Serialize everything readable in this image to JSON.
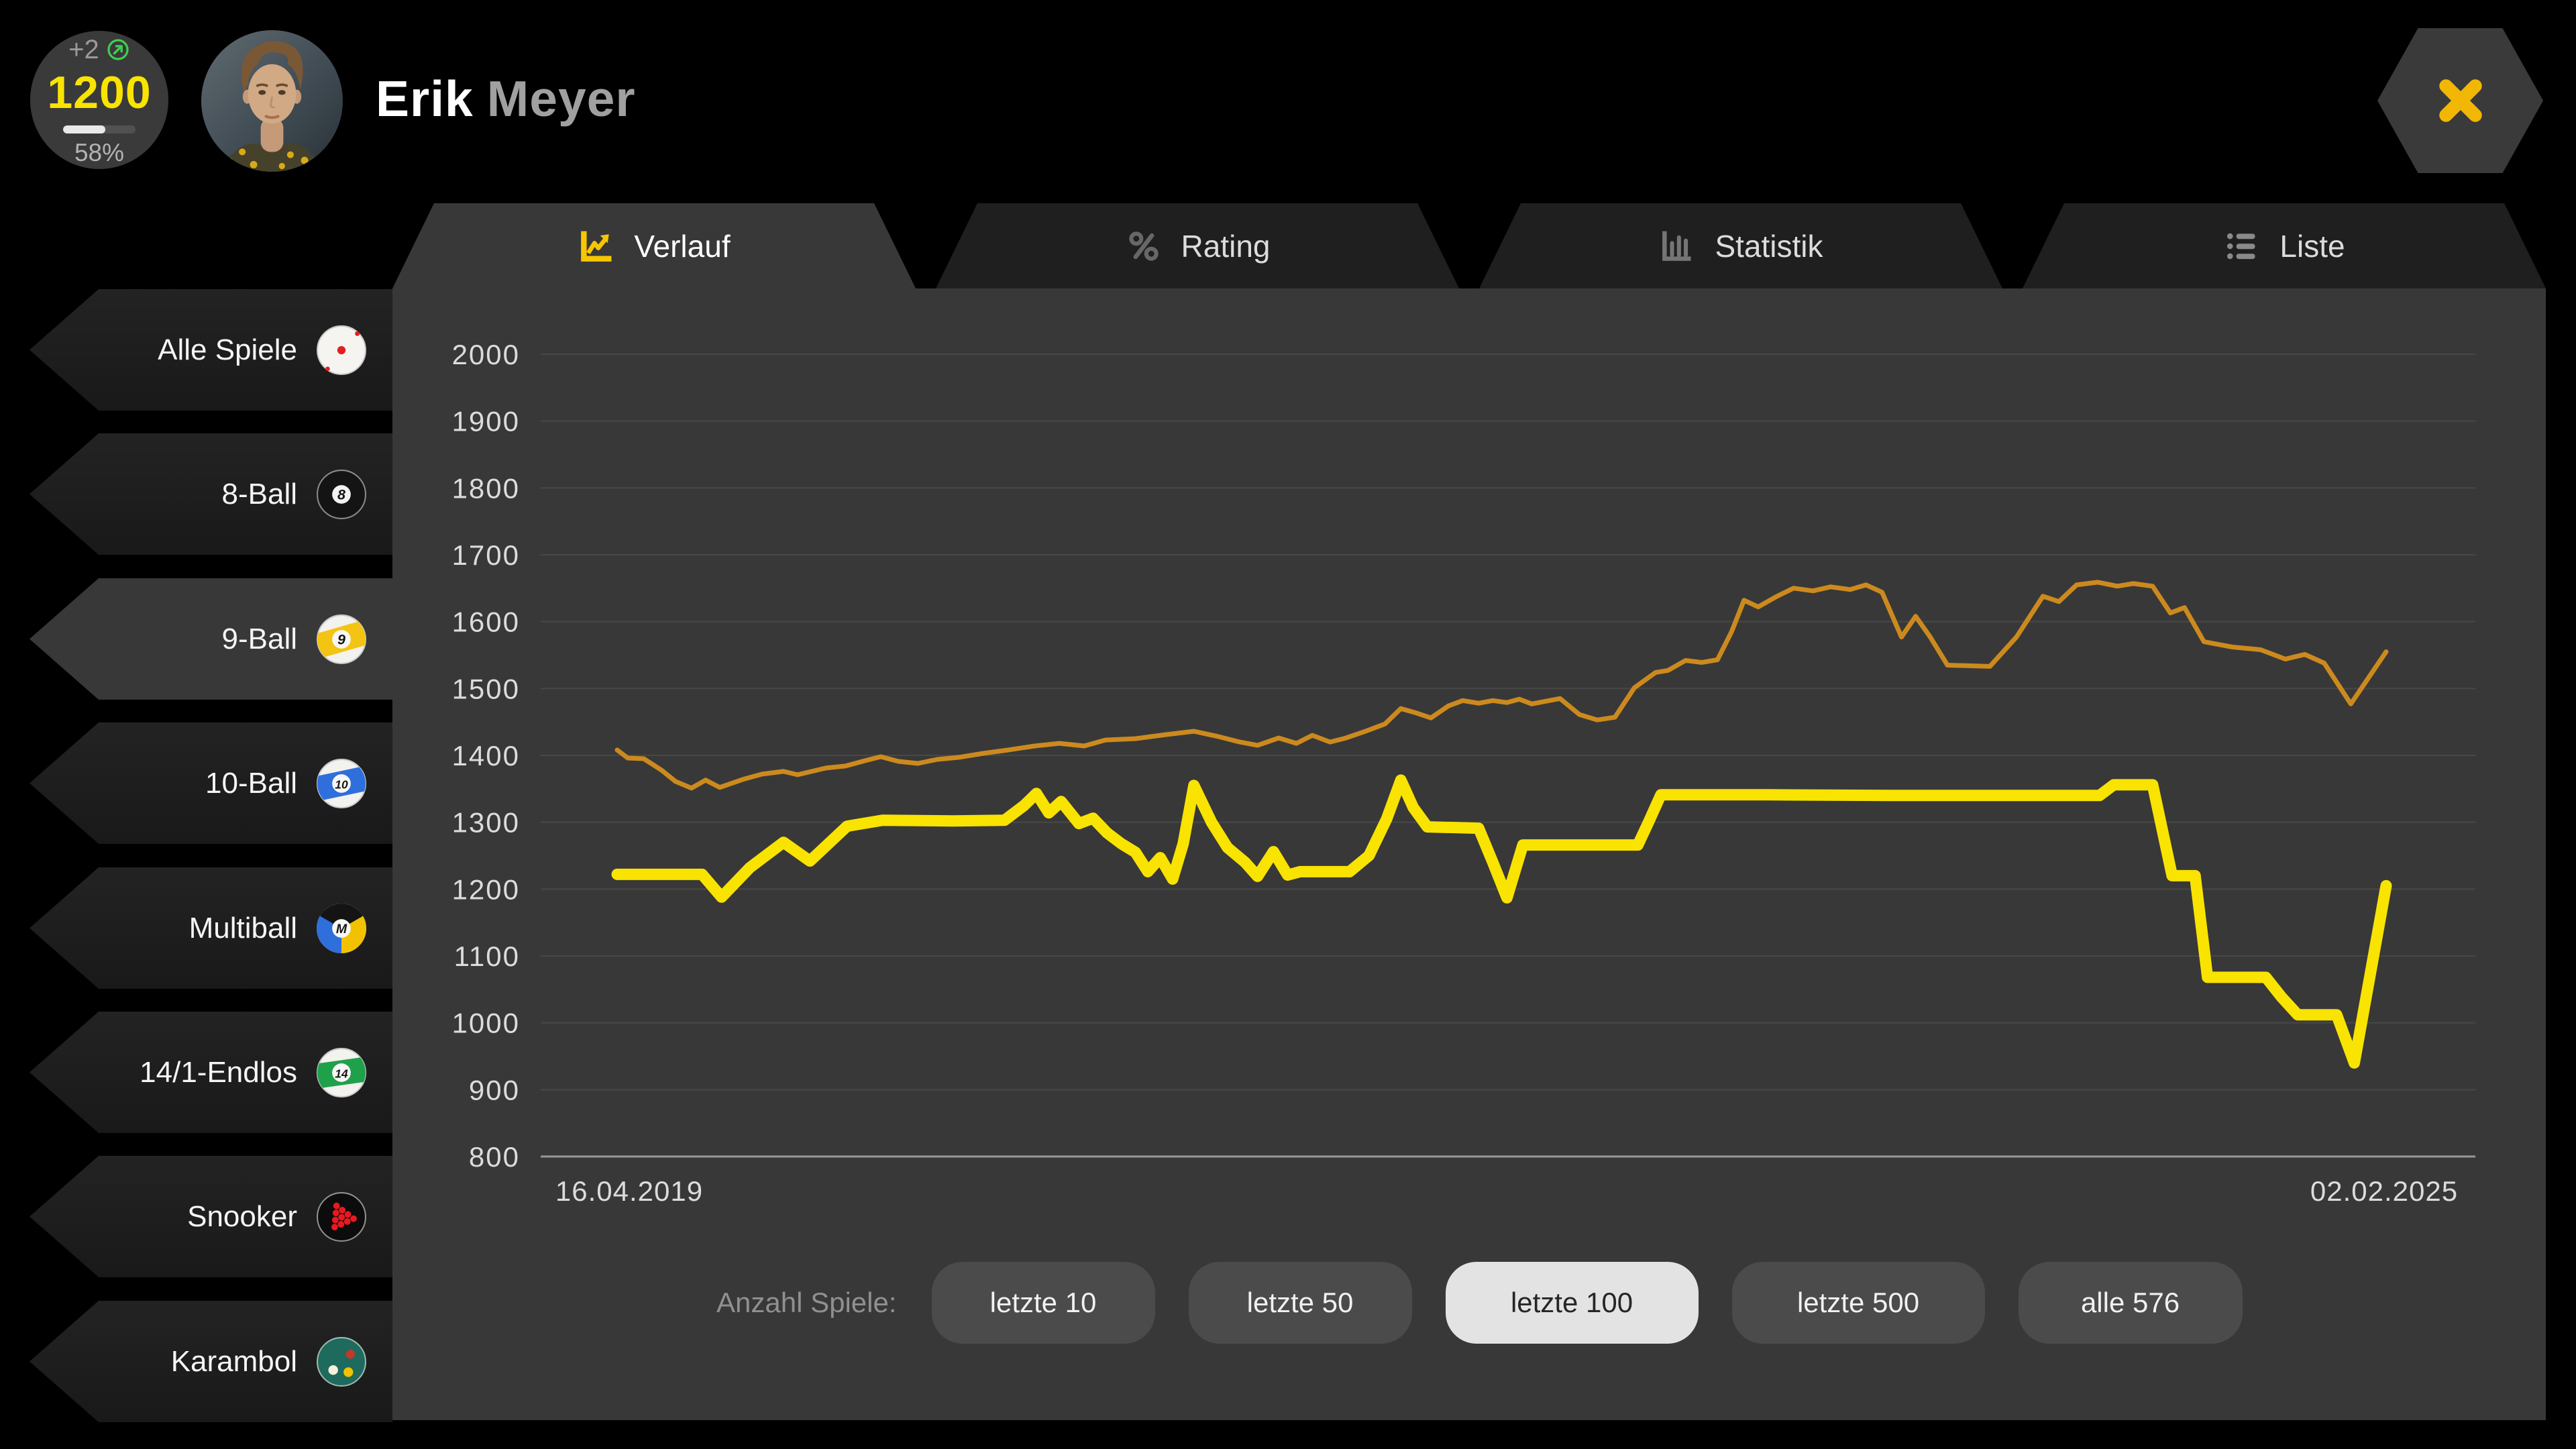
{
  "header": {
    "badge": {
      "delta": "+2",
      "value": "1200",
      "progress_percent": 58,
      "progress_label": "58%"
    },
    "player": {
      "first": "Erik",
      "last": "Meyer"
    }
  },
  "tabs": [
    {
      "id": "verlauf",
      "label": "Verlauf",
      "icon": "chart-line-icon",
      "active": true
    },
    {
      "id": "rating",
      "label": "Rating",
      "icon": "percent-icon",
      "active": false
    },
    {
      "id": "statistik",
      "label": "Statistik",
      "icon": "bar-chart-icon",
      "active": false
    },
    {
      "id": "liste",
      "label": "Liste",
      "icon": "list-icon",
      "active": false
    }
  ],
  "sidebar": {
    "items": [
      {
        "label": "Alle Spiele",
        "icon": "cue-ball",
        "active": false
      },
      {
        "label": "8-Ball",
        "icon": "ball-8",
        "active": false
      },
      {
        "label": "9-Ball",
        "icon": "ball-9",
        "active": true
      },
      {
        "label": "10-Ball",
        "icon": "ball-10",
        "active": false
      },
      {
        "label": "Multiball",
        "icon": "ball-multi",
        "active": false
      },
      {
        "label": "14/1-Endlos",
        "icon": "ball-14",
        "active": false
      },
      {
        "label": "Snooker",
        "icon": "snooker-balls",
        "active": false
      },
      {
        "label": "Karambol",
        "icon": "karambol-balls",
        "active": false
      }
    ]
  },
  "chart_data": {
    "type": "line",
    "title": "",
    "x_axis": {
      "start_label": "16.04.2019",
      "end_label": "02.02.2025"
    },
    "y_axis": {
      "ticks": [
        2000,
        1900,
        1800,
        1700,
        1600,
        1500,
        1400,
        1300,
        1200,
        1100,
        1000,
        900,
        800
      ],
      "min": 800,
      "max": 2000
    },
    "grid": true,
    "legend": "none",
    "series": [
      {
        "name": "series-orange",
        "color": "#cc8a1e",
        "stroke_width": 7,
        "points": [
          [
            0.0,
            1408
          ],
          [
            0.006,
            1396
          ],
          [
            0.015,
            1395
          ],
          [
            0.025,
            1378
          ],
          [
            0.033,
            1361
          ],
          [
            0.042,
            1351
          ],
          [
            0.05,
            1363
          ],
          [
            0.058,
            1352
          ],
          [
            0.071,
            1364
          ],
          [
            0.082,
            1372
          ],
          [
            0.094,
            1376
          ],
          [
            0.102,
            1371
          ],
          [
            0.118,
            1381
          ],
          [
            0.129,
            1384
          ],
          [
            0.14,
            1392
          ],
          [
            0.149,
            1398
          ],
          [
            0.159,
            1391
          ],
          [
            0.17,
            1388
          ],
          [
            0.181,
            1394
          ],
          [
            0.193,
            1397
          ],
          [
            0.207,
            1403
          ],
          [
            0.221,
            1408
          ],
          [
            0.236,
            1414
          ],
          [
            0.25,
            1418
          ],
          [
            0.264,
            1414
          ],
          [
            0.276,
            1423
          ],
          [
            0.293,
            1425
          ],
          [
            0.31,
            1431
          ],
          [
            0.326,
            1436
          ],
          [
            0.34,
            1428
          ],
          [
            0.352,
            1420
          ],
          [
            0.362,
            1415
          ],
          [
            0.374,
            1426
          ],
          [
            0.384,
            1418
          ],
          [
            0.393,
            1430
          ],
          [
            0.403,
            1420
          ],
          [
            0.412,
            1426
          ],
          [
            0.423,
            1436
          ],
          [
            0.434,
            1447
          ],
          [
            0.443,
            1470
          ],
          [
            0.451,
            1464
          ],
          [
            0.46,
            1456
          ],
          [
            0.47,
            1474
          ],
          [
            0.478,
            1482
          ],
          [
            0.487,
            1478
          ],
          [
            0.495,
            1482
          ],
          [
            0.503,
            1479
          ],
          [
            0.51,
            1484
          ],
          [
            0.517,
            1477
          ],
          [
            0.525,
            1481
          ],
          [
            0.533,
            1485
          ],
          [
            0.544,
            1461
          ],
          [
            0.554,
            1453
          ],
          [
            0.564,
            1457
          ],
          [
            0.575,
            1501
          ],
          [
            0.587,
            1524
          ],
          [
            0.594,
            1527
          ],
          [
            0.604,
            1542
          ],
          [
            0.613,
            1539
          ],
          [
            0.622,
            1543
          ],
          [
            0.63,
            1585
          ],
          [
            0.637,
            1632
          ],
          [
            0.645,
            1622
          ],
          [
            0.655,
            1637
          ],
          [
            0.665,
            1650
          ],
          [
            0.676,
            1646
          ],
          [
            0.686,
            1652
          ],
          [
            0.697,
            1648
          ],
          [
            0.706,
            1655
          ],
          [
            0.715,
            1644
          ],
          [
            0.726,
            1577
          ],
          [
            0.734,
            1608
          ],
          [
            0.742,
            1578
          ],
          [
            0.752,
            1535
          ],
          [
            0.776,
            1533
          ],
          [
            0.791,
            1577
          ],
          [
            0.806,
            1638
          ],
          [
            0.815,
            1630
          ],
          [
            0.825,
            1655
          ],
          [
            0.837,
            1659
          ],
          [
            0.848,
            1653
          ],
          [
            0.857,
            1657
          ],
          [
            0.868,
            1653
          ],
          [
            0.878,
            1613
          ],
          [
            0.886,
            1621
          ],
          [
            0.897,
            1570
          ],
          [
            0.913,
            1562
          ],
          [
            0.929,
            1558
          ],
          [
            0.943,
            1544
          ],
          [
            0.954,
            1551
          ],
          [
            0.965,
            1538
          ],
          [
            0.98,
            1477
          ],
          [
            0.989,
            1512
          ],
          [
            1.0,
            1555
          ]
        ]
      },
      {
        "name": "series-yellow",
        "color": "#f9e300",
        "stroke_width": 17,
        "points": [
          [
            0.0,
            1222
          ],
          [
            0.048,
            1222
          ],
          [
            0.059,
            1188
          ],
          [
            0.075,
            1232
          ],
          [
            0.094,
            1270
          ],
          [
            0.109,
            1242
          ],
          [
            0.13,
            1294
          ],
          [
            0.15,
            1303
          ],
          [
            0.19,
            1302
          ],
          [
            0.219,
            1303
          ],
          [
            0.23,
            1325
          ],
          [
            0.237,
            1343
          ],
          [
            0.244,
            1314
          ],
          [
            0.251,
            1331
          ],
          [
            0.261,
            1298
          ],
          [
            0.269,
            1306
          ],
          [
            0.277,
            1284
          ],
          [
            0.285,
            1268
          ],
          [
            0.293,
            1255
          ],
          [
            0.3,
            1226
          ],
          [
            0.307,
            1247
          ],
          [
            0.314,
            1215
          ],
          [
            0.32,
            1268
          ],
          [
            0.326,
            1355
          ],
          [
            0.336,
            1300
          ],
          [
            0.345,
            1262
          ],
          [
            0.355,
            1240
          ],
          [
            0.362,
            1219
          ],
          [
            0.371,
            1256
          ],
          [
            0.379,
            1221
          ],
          [
            0.386,
            1226
          ],
          [
            0.414,
            1226
          ],
          [
            0.425,
            1250
          ],
          [
            0.435,
            1305
          ],
          [
            0.443,
            1363
          ],
          [
            0.45,
            1322
          ],
          [
            0.458,
            1293
          ],
          [
            0.487,
            1291
          ],
          [
            0.495,
            1240
          ],
          [
            0.503,
            1187
          ],
          [
            0.512,
            1266
          ],
          [
            0.545,
            1266
          ],
          [
            0.577,
            1266
          ],
          [
            0.583,
            1300
          ],
          [
            0.59,
            1341
          ],
          [
            0.65,
            1341
          ],
          [
            0.72,
            1340
          ],
          [
            0.78,
            1340
          ],
          [
            0.838,
            1340
          ],
          [
            0.846,
            1356
          ],
          [
            0.868,
            1356
          ],
          [
            0.879,
            1220
          ],
          [
            0.892,
            1220
          ],
          [
            0.899,
            1068
          ],
          [
            0.932,
            1068
          ],
          [
            0.941,
            1038
          ],
          [
            0.95,
            1012
          ],
          [
            0.972,
            1012
          ],
          [
            0.982,
            940
          ],
          [
            1.0,
            1205
          ]
        ]
      }
    ]
  },
  "footer": {
    "label": "Anzahl Spiele:",
    "buttons": [
      {
        "label": "letzte 10",
        "active": false
      },
      {
        "label": "letzte 50",
        "active": false
      },
      {
        "label": "letzte 100",
        "active": true
      },
      {
        "label": "letzte 500",
        "active": false
      },
      {
        "label": "alle 576",
        "active": false
      }
    ]
  },
  "colors": {
    "page_bg": "#000000",
    "panel_bg": "#383838",
    "tab_inactive_bg": "#1f1f1f",
    "sidebar_item_bg": "#1c1c1c",
    "accent_yellow": "#f8e400",
    "line_yellow": "#f9e300",
    "line_orange": "#cc8a1e",
    "grid": "#484848",
    "axis": "#999999",
    "button_bg": "#4b4b4b",
    "button_active_bg": "#e3e3e3",
    "close_x": "#f2b705",
    "green_delta": "#3ecf52"
  }
}
